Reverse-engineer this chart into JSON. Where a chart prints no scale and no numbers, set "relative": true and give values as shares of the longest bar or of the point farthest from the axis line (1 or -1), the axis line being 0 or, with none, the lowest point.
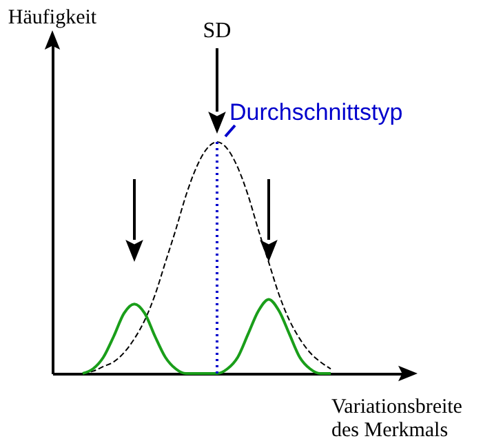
{
  "chart_data": {
    "type": "line",
    "relative": true,
    "xlabel": "Variationsbreite des Merkmals",
    "categories": [
      null,
      null,
      null,
      null,
      null,
      null,
      null,
      null,
      null,
      null,
      null,
      null,
      null,
      null,
      null,
      null,
      null,
      null,
      null,
      null,
      null,
      null,
      null,
      null,
      null
    ],
    "series": [
      {
        "color": "#000000",
        "line_style": "dashed",
        "values": [
          0,
          0.01,
          0.03,
          0.05,
          0.09,
          0.15,
          0.23,
          0.34,
          0.48,
          0.62,
          0.77,
          0.89,
          0.97,
          1,
          0.97,
          0.89,
          0.77,
          0.62,
          0.48,
          0.34,
          0.23,
          0.15,
          0.09,
          0.05,
          0.02
        ]
      },
      {
        "color": "#1a9e1a",
        "line_style": "solid",
        "values": [
          0,
          0.02,
          0.07,
          0.16,
          0.26,
          0.3,
          0.26,
          0.16,
          0.07,
          0.02,
          0,
          0,
          0,
          0,
          0.02,
          0.07,
          0.17,
          0.27,
          0.32,
          0.27,
          0.17,
          0.07,
          0.02,
          0,
          0
        ]
      }
    ],
    "annotations": [
      "SD",
      "Durchschnittstyp",
      "Häufigkeit"
    ],
    "grid": false
  }
}
